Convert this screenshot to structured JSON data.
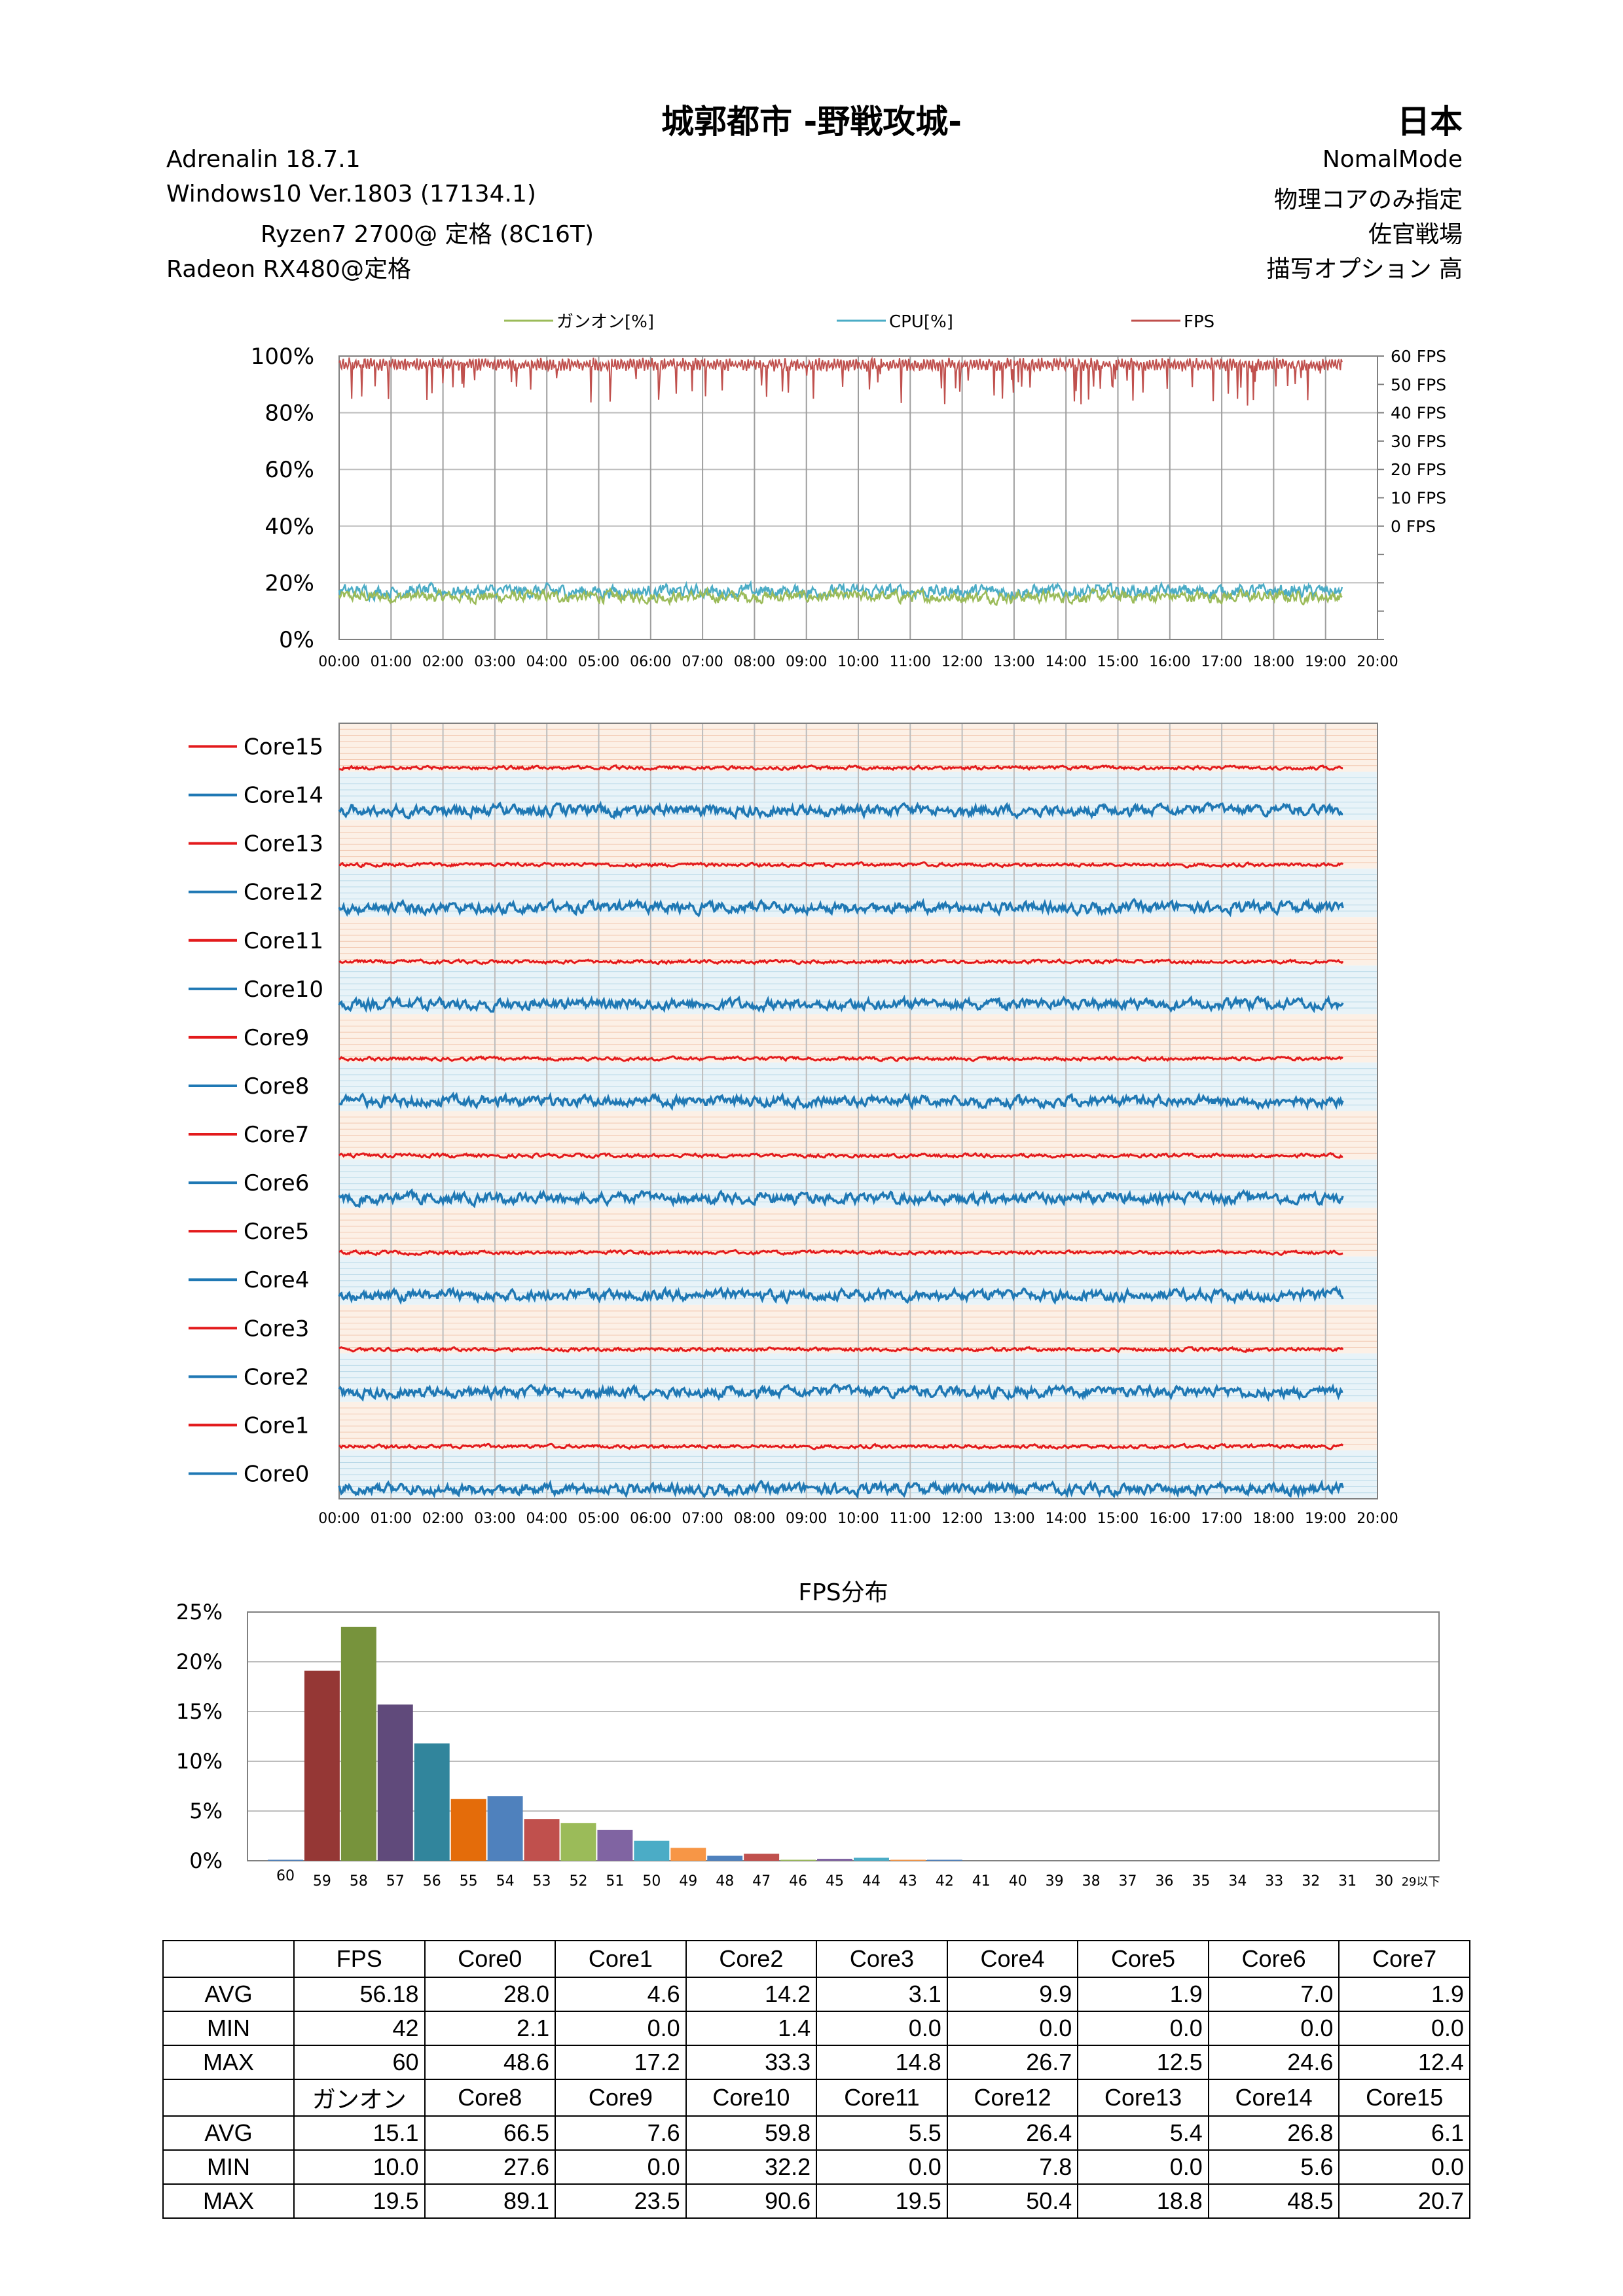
{
  "header": {
    "title": "城郭都市 -野戦攻城-",
    "region": "日本",
    "left_lines": [
      "Adrenalin  18.7.1",
      "Windows10  Ver.1803 (17134.1)",
      "Ryzen7 2700@ 定格        (8C16T)",
      "Radeon RX480@定格"
    ],
    "right_lines": [
      "NomalMode",
      "物理コアのみ指定",
      "佐官戦場",
      "描写オプション  高"
    ]
  },
  "chart_data": [
    {
      "type": "line",
      "legend": [
        "ガンオン[%]",
        "CPU[%]",
        "FPS"
      ],
      "colors": {
        "ガンオン[%]": "#9bbb59",
        "CPU[%]": "#4bacc6",
        "FPS": "#c0504d"
      },
      "x_ticks": [
        "00:00",
        "01:00",
        "02:00",
        "03:00",
        "04:00",
        "05:00",
        "06:00",
        "07:00",
        "08:00",
        "09:00",
        "10:00",
        "11:00",
        "12:00",
        "13:00",
        "14:00",
        "15:00",
        "16:00",
        "17:00",
        "18:00",
        "19:00",
        "20:00"
      ],
      "y_ticks": [
        "0%",
        "20%",
        "40%",
        "60%",
        "80%",
        "100%"
      ],
      "y2_ticks": [
        "0 FPS",
        "10 FPS",
        "20 FPS",
        "30 FPS",
        "40 FPS",
        "50 FPS",
        "60 FPS"
      ],
      "ylim": [
        0,
        100
      ],
      "y2lim": [
        -40,
        60
      ],
      "xlim_min": [
        0,
        1200
      ],
      "series_end_min": 1160,
      "gunon_typical": 15.1,
      "cpu_typical": 17,
      "fps_typical": 57
    },
    {
      "type": "line",
      "series": [
        "Core15",
        "Core14",
        "Core13",
        "Core12",
        "Core11",
        "Core10",
        "Core9",
        "Core8",
        "Core7",
        "Core6",
        "Core5",
        "Core4",
        "Core3",
        "Core2",
        "Core1",
        "Core0"
      ],
      "colors": {
        "odd": "#e31a1c",
        "even": "#1f78b4"
      },
      "x_ticks": [
        "00:00",
        "01:00",
        "02:00",
        "03:00",
        "04:00",
        "05:00",
        "06:00",
        "07:00",
        "08:00",
        "09:00",
        "10:00",
        "11:00",
        "12:00",
        "13:00",
        "14:00",
        "15:00",
        "16:00",
        "17:00",
        "18:00",
        "19:00",
        "20:00"
      ]
    },
    {
      "type": "bar",
      "title": "FPS分布",
      "categories": [
        "60",
        "59",
        "58",
        "57",
        "56",
        "55",
        "54",
        "53",
        "52",
        "51",
        "50",
        "49",
        "48",
        "47",
        "46",
        "45",
        "44",
        "43",
        "42",
        "41",
        "40",
        "39",
        "38",
        "37",
        "36",
        "35",
        "34",
        "33",
        "32",
        "31",
        "30",
        "29以下"
      ],
      "values": [
        0.1,
        19.1,
        23.5,
        15.7,
        11.8,
        6.2,
        6.5,
        4.2,
        3.8,
        3.1,
        2.0,
        1.3,
        0.5,
        0.7,
        0.1,
        0.2,
        0.3,
        0.1,
        0.1,
        0,
        0,
        0,
        0,
        0,
        0,
        0,
        0,
        0,
        0,
        0,
        0,
        0
      ],
      "y_ticks": [
        "0%",
        "5%",
        "10%",
        "15%",
        "20%",
        "25%"
      ],
      "ylim": [
        0,
        25
      ],
      "colors": [
        "#4f81bd",
        "#953735",
        "#77933c",
        "#604a7b",
        "#31859c",
        "#e46c0a",
        "#4f81bd",
        "#c0504d",
        "#9bbb59",
        "#8064a2",
        "#4bacc6",
        "#f79646",
        "#4f81bd",
        "#c0504d",
        "#9bbb59",
        "#8064a2",
        "#4bacc6",
        "#f79646",
        "#4f81bd",
        "#c0504d",
        "#9bbb59",
        "#8064a2",
        "#4bacc6",
        "#f79646",
        "#4f81bd",
        "#c0504d",
        "#9bbb59",
        "#8064a2",
        "#4bacc6",
        "#f79646",
        "#4f81bd",
        "#c0504d"
      ]
    }
  ],
  "stats_table": {
    "block1": {
      "headers": [
        "FPS",
        "Core0",
        "Core1",
        "Core2",
        "Core3",
        "Core4",
        "Core5",
        "Core6",
        "Core7"
      ],
      "rows": [
        {
          "label": "AVG",
          "values": [
            "56.18",
            "28.0",
            "4.6",
            "14.2",
            "3.1",
            "9.9",
            "1.9",
            "7.0",
            "1.9"
          ]
        },
        {
          "label": "MIN",
          "values": [
            "42",
            "2.1",
            "0.0",
            "1.4",
            "0.0",
            "0.0",
            "0.0",
            "0.0",
            "0.0"
          ]
        },
        {
          "label": "MAX",
          "values": [
            "60",
            "48.6",
            "17.2",
            "33.3",
            "14.8",
            "26.7",
            "12.5",
            "24.6",
            "12.4"
          ]
        }
      ]
    },
    "block2": {
      "headers": [
        "ガンオン",
        "Core8",
        "Core9",
        "Core10",
        "Core11",
        "Core12",
        "Core13",
        "Core14",
        "Core15"
      ],
      "rows": [
        {
          "label": "AVG",
          "values": [
            "15.1",
            "66.5",
            "7.6",
            "59.8",
            "5.5",
            "26.4",
            "5.4",
            "26.8",
            "6.1"
          ]
        },
        {
          "label": "MIN",
          "values": [
            "10.0",
            "27.6",
            "0.0",
            "32.2",
            "0.0",
            "7.8",
            "0.0",
            "5.6",
            "0.0"
          ]
        },
        {
          "label": "MAX",
          "values": [
            "19.5",
            "89.1",
            "23.5",
            "90.6",
            "19.5",
            "50.4",
            "18.8",
            "48.5",
            "20.7"
          ]
        }
      ]
    }
  }
}
